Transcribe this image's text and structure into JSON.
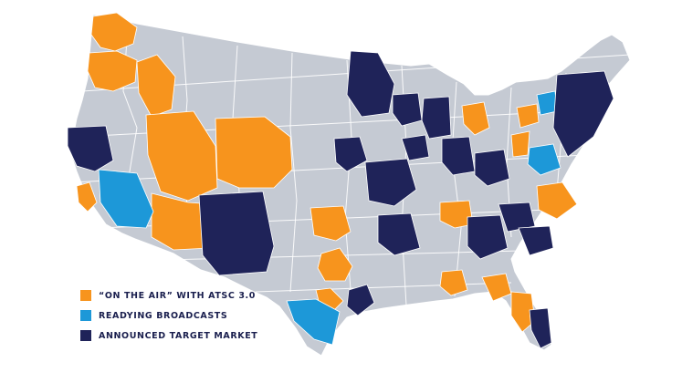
{
  "colors": {
    "background": "#ffffff",
    "land": "#c5cad3",
    "border": "#ffffff",
    "on_air": "#f7941d",
    "readying": "#1d98d8",
    "target": "#1f2359"
  },
  "legend": {
    "items": [
      {
        "key": "on_air",
        "label": "“ON THE AIR” WITH ATSC 3.0",
        "color": "#f7941d",
        "icon": "orange-square"
      },
      {
        "key": "readying",
        "label": "READYING BROADCASTS",
        "color": "#1d98d8",
        "icon": "blue-square"
      },
      {
        "key": "target",
        "label": "ANNOUNCED TARGET MARKET",
        "color": "#1f2359",
        "icon": "navy-square"
      }
    ]
  },
  "markets": [
    {
      "status": "on_air",
      "region": "Washington"
    },
    {
      "status": "on_air",
      "region": "Oregon"
    },
    {
      "status": "on_air",
      "region": "Idaho"
    },
    {
      "status": "on_air",
      "region": "Nevada / Utah"
    },
    {
      "status": "on_air",
      "region": "Colorado"
    },
    {
      "status": "on_air",
      "region": "Arizona"
    },
    {
      "status": "on_air",
      "region": "Southern California coast"
    },
    {
      "status": "on_air",
      "region": "Oklahoma"
    },
    {
      "status": "on_air",
      "region": "North Texas"
    },
    {
      "status": "on_air",
      "region": "Central Texas"
    },
    {
      "status": "on_air",
      "region": "Tennessee"
    },
    {
      "status": "on_air",
      "region": "Alabama"
    },
    {
      "status": "on_air",
      "region": "Georgia"
    },
    {
      "status": "on_air",
      "region": "Florida Gulf"
    },
    {
      "status": "on_air",
      "region": "Virginia"
    },
    {
      "status": "on_air",
      "region": "Ohio"
    },
    {
      "status": "on_air",
      "region": "Pennsylvania"
    },
    {
      "status": "on_air",
      "region": "Michigan"
    },
    {
      "status": "readying",
      "region": "Southern California inland"
    },
    {
      "status": "readying",
      "region": "South Texas"
    },
    {
      "status": "readying",
      "region": "Maryland / DC"
    },
    {
      "status": "readying",
      "region": "Upstate New York"
    },
    {
      "status": "target",
      "region": "Northern California"
    },
    {
      "status": "target",
      "region": "New Mexico"
    },
    {
      "status": "target",
      "region": "Minnesota"
    },
    {
      "status": "target",
      "region": "Iowa"
    },
    {
      "status": "target",
      "region": "Missouri"
    },
    {
      "status": "target",
      "region": "Arkansas"
    },
    {
      "status": "target",
      "region": "Louisiana"
    },
    {
      "status": "target",
      "region": "Houston"
    },
    {
      "status": "target",
      "region": "Mississippi"
    },
    {
      "status": "target",
      "region": "Kentucky"
    },
    {
      "status": "target",
      "region": "Indiana"
    },
    {
      "status": "target",
      "region": "Illinois"
    },
    {
      "status": "target",
      "region": "Wisconsin"
    },
    {
      "status": "target",
      "region": "Carolinas"
    },
    {
      "status": "target",
      "region": "Northeast"
    },
    {
      "status": "target",
      "region": "South Florida"
    },
    {
      "status": "target",
      "region": "West Virginia"
    }
  ]
}
